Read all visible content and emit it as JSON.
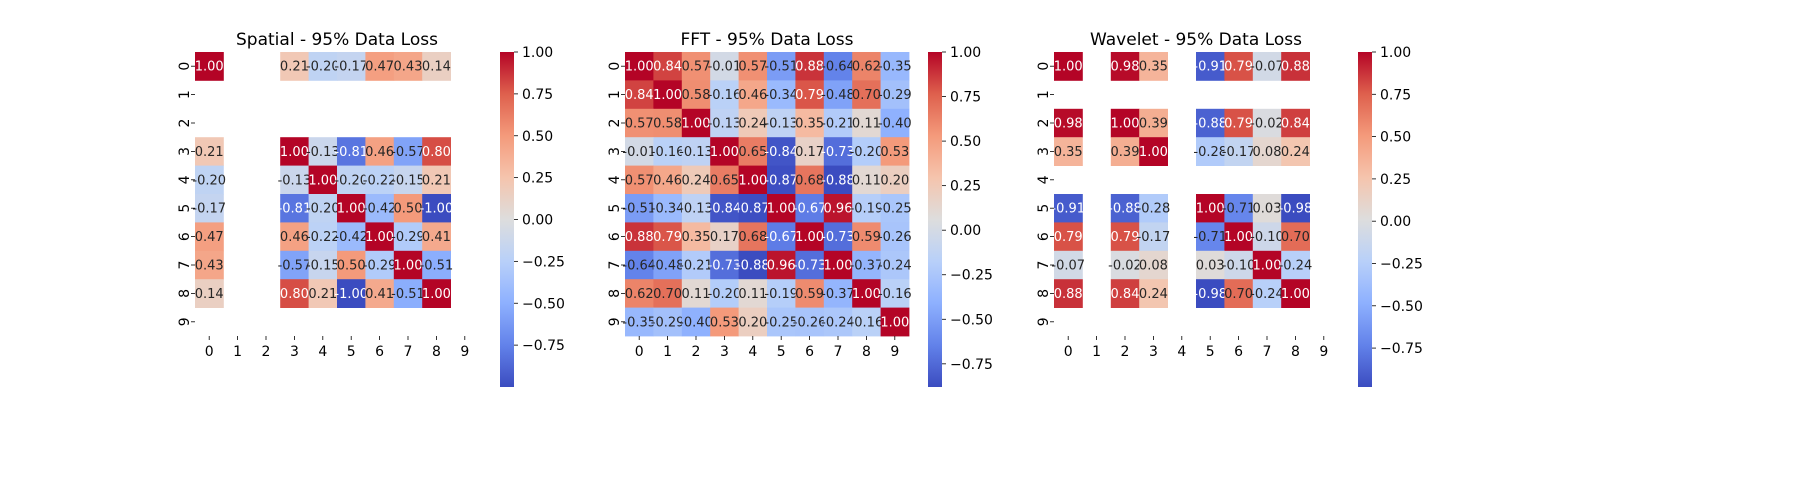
{
  "chart_data": [
    {
      "type": "heatmap",
      "title": "Spatial - 95% Data Loss",
      "labels": [
        "0",
        "1",
        "2",
        "3",
        "4",
        "5",
        "6",
        "7",
        "8",
        "9"
      ],
      "matrix": [
        [
          1.0,
          null,
          null,
          0.21,
          -0.2,
          -0.17,
          0.47,
          0.43,
          0.14,
          null
        ],
        [
          null,
          null,
          null,
          null,
          null,
          null,
          null,
          null,
          null,
          null
        ],
        [
          null,
          null,
          null,
          null,
          null,
          null,
          null,
          null,
          null,
          null
        ],
        [
          0.21,
          null,
          null,
          1.0,
          -0.13,
          -0.81,
          0.46,
          -0.57,
          0.8,
          null
        ],
        [
          -0.2,
          null,
          null,
          -0.13,
          1.0,
          -0.2,
          -0.22,
          -0.15,
          0.21,
          null
        ],
        [
          -0.17,
          null,
          null,
          -0.81,
          -0.2,
          1.0,
          -0.42,
          0.5,
          -1.0,
          null
        ],
        [
          0.47,
          null,
          null,
          0.46,
          -0.22,
          -0.42,
          1.0,
          -0.29,
          0.41,
          null
        ],
        [
          0.43,
          null,
          null,
          -0.57,
          -0.15,
          0.5,
          -0.29,
          1.0,
          -0.51,
          null
        ],
        [
          0.14,
          null,
          null,
          0.8,
          0.21,
          -1.0,
          0.41,
          -0.51,
          1.0,
          null
        ],
        [
          null,
          null,
          null,
          null,
          null,
          null,
          null,
          null,
          null,
          null
        ]
      ],
      "vmin": -1.0,
      "vmax": 1.0,
      "colorbar_ticks": [
        "1.00",
        "0.75",
        "0.50",
        "0.25",
        "0.00",
        "−0.25",
        "−0.50",
        "−0.75"
      ],
      "colorbar_tick_values": [
        1.0,
        0.75,
        0.5,
        0.25,
        0.0,
        -0.25,
        -0.5,
        -0.75
      ],
      "colormap": "coolwarm"
    },
    {
      "type": "heatmap",
      "title": "FFT - 95% Data Loss",
      "labels": [
        "0",
        "1",
        "2",
        "3",
        "4",
        "5",
        "6",
        "7",
        "8",
        "9"
      ],
      "matrix": [
        [
          1.0,
          0.84,
          0.57,
          -0.01,
          0.57,
          -0.51,
          0.88,
          -0.64,
          0.62,
          -0.35
        ],
        [
          0.84,
          1.0,
          0.58,
          -0.16,
          0.46,
          -0.34,
          0.79,
          -0.48,
          0.7,
          -0.29
        ],
        [
          0.57,
          0.58,
          1.0,
          -0.13,
          0.24,
          -0.13,
          0.35,
          -0.21,
          0.11,
          -0.4
        ],
        [
          -0.01,
          -0.16,
          -0.13,
          1.0,
          0.65,
          -0.84,
          0.17,
          -0.73,
          -0.2,
          0.53
        ],
        [
          0.57,
          0.46,
          0.24,
          0.65,
          1.0,
          -0.87,
          0.68,
          -0.88,
          0.11,
          0.2
        ],
        [
          -0.51,
          -0.34,
          -0.13,
          -0.84,
          -0.87,
          1.0,
          -0.67,
          0.96,
          -0.19,
          -0.25
        ],
        [
          0.88,
          0.79,
          0.35,
          0.17,
          0.68,
          -0.67,
          1.0,
          -0.73,
          0.59,
          -0.26
        ],
        [
          -0.64,
          -0.48,
          -0.21,
          -0.73,
          -0.88,
          0.96,
          -0.73,
          1.0,
          -0.37,
          -0.24
        ],
        [
          0.62,
          0.7,
          0.11,
          -0.2,
          0.11,
          -0.19,
          0.59,
          -0.37,
          1.0,
          -0.16
        ],
        [
          -0.35,
          -0.29,
          -0.4,
          0.53,
          0.2,
          -0.25,
          -0.26,
          -0.24,
          -0.16,
          1.0
        ]
      ],
      "vmin": -0.88,
      "vmax": 1.0,
      "colorbar_ticks": [
        "1.00",
        "0.75",
        "0.50",
        "0.25",
        "0.00",
        "−0.25",
        "−0.50",
        "−0.75"
      ],
      "colorbar_tick_values": [
        1.0,
        0.75,
        0.5,
        0.25,
        0.0,
        -0.25,
        -0.5,
        -0.75
      ],
      "colormap": "coolwarm"
    },
    {
      "type": "heatmap",
      "title": "Wavelet - 95% Data Loss",
      "labels": [
        "0",
        "1",
        "2",
        "3",
        "4",
        "5",
        "6",
        "7",
        "8",
        "9"
      ],
      "matrix": [
        [
          1.0,
          null,
          0.98,
          0.35,
          null,
          -0.91,
          0.79,
          -0.07,
          0.88,
          null
        ],
        [
          null,
          null,
          null,
          null,
          null,
          null,
          null,
          null,
          null,
          null
        ],
        [
          0.98,
          null,
          1.0,
          0.39,
          null,
          -0.88,
          0.79,
          -0.02,
          0.84,
          null
        ],
        [
          0.35,
          null,
          0.39,
          1.0,
          null,
          -0.28,
          -0.17,
          0.08,
          0.24,
          null
        ],
        [
          null,
          null,
          null,
          null,
          null,
          null,
          null,
          null,
          null,
          null
        ],
        [
          -0.91,
          null,
          -0.88,
          -0.28,
          null,
          1.0,
          -0.71,
          0.03,
          -0.98,
          null
        ],
        [
          0.79,
          null,
          0.79,
          -0.17,
          null,
          -0.71,
          1.0,
          -0.1,
          0.7,
          null
        ],
        [
          -0.07,
          null,
          -0.02,
          0.08,
          null,
          0.03,
          -0.1,
          1.0,
          -0.24,
          null
        ],
        [
          0.88,
          null,
          0.84,
          0.24,
          null,
          -0.98,
          0.7,
          -0.24,
          1.0,
          null
        ],
        [
          null,
          null,
          null,
          null,
          null,
          null,
          null,
          null,
          null,
          null
        ]
      ],
      "vmin": -0.98,
      "vmax": 1.0,
      "colorbar_ticks": [
        "1.00",
        "0.75",
        "0.50",
        "0.25",
        "0.00",
        "−0.25",
        "−0.50",
        "−0.75"
      ],
      "colorbar_tick_values": [
        1.0,
        0.75,
        0.5,
        0.25,
        0.0,
        -0.25,
        -0.5,
        -0.75
      ],
      "colormap": "coolwarm"
    }
  ]
}
